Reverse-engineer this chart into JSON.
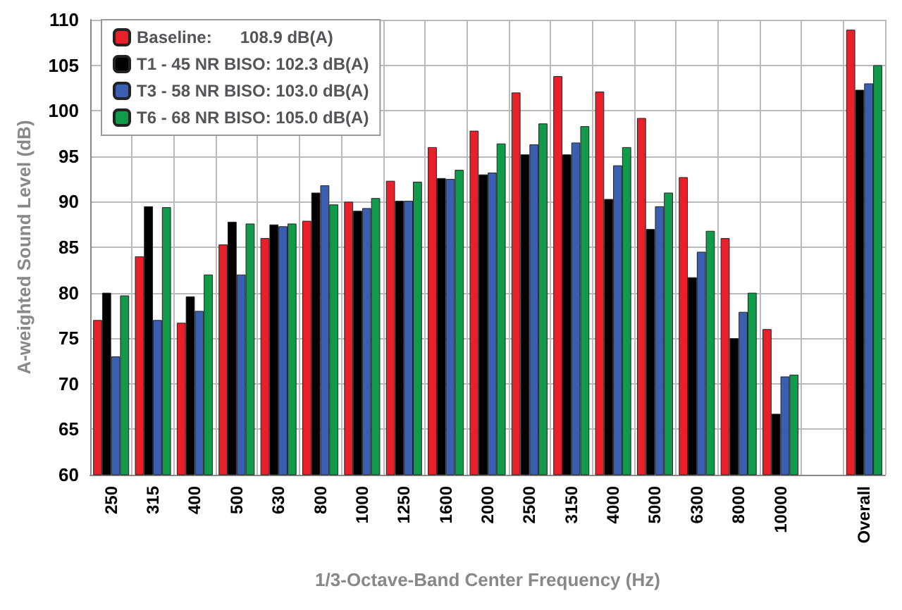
{
  "chart_data": {
    "type": "bar",
    "xlabel": "1/3-Octave-Band Center Frequency (Hz)",
    "ylabel": "A-weighted Sound Level (dB)",
    "categories": [
      "250",
      "315",
      "400",
      "500",
      "630",
      "800",
      "1000",
      "1250",
      "1600",
      "2000",
      "2500",
      "3150",
      "4000",
      "5000",
      "6300",
      "8000",
      "10000",
      null,
      "Overall"
    ],
    "series": [
      {
        "name": "Baseline:      108.9 dB(A)",
        "color": "#e8202a",
        "values": [
          77,
          84,
          76.7,
          85.3,
          86,
          87.9,
          90,
          92.3,
          96,
          97.8,
          102,
          103.8,
          102.1,
          99.2,
          92.7,
          86,
          76,
          null,
          108.9
        ]
      },
      {
        "name": "T1 - 45 NR BISO: 102.3 dB(A)",
        "color": "#000000",
        "values": [
          80,
          89.5,
          79.6,
          87.8,
          87.5,
          91,
          89,
          90.1,
          92.6,
          93,
          95.2,
          95.2,
          90.3,
          87,
          81.7,
          75,
          66.7,
          null,
          102.3
        ]
      },
      {
        "name": "T3 - 58 NR BISO: 103.0 dB(A)",
        "color": "#3a5fb0",
        "values": [
          73,
          77,
          78,
          82,
          87.3,
          91.8,
          89.3,
          90.1,
          92.5,
          93.2,
          96.3,
          96.5,
          94,
          89.5,
          84.5,
          77.9,
          70.8,
          null,
          103.0
        ]
      },
      {
        "name": "T6 - 68 NR BISO: 105.0 dB(A)",
        "color": "#109a4a",
        "values": [
          79.7,
          89.4,
          82,
          87.6,
          87.6,
          89.7,
          90.4,
          92.2,
          93.5,
          96.4,
          98.6,
          98.3,
          96,
          91,
          86.8,
          80,
          71,
          null,
          105.0
        ]
      }
    ],
    "ylim": [
      60,
      110
    ],
    "yticks": [
      60,
      65,
      70,
      75,
      80,
      85,
      90,
      95,
      100,
      105,
      110
    ],
    "grid": true,
    "legend": "top left"
  }
}
